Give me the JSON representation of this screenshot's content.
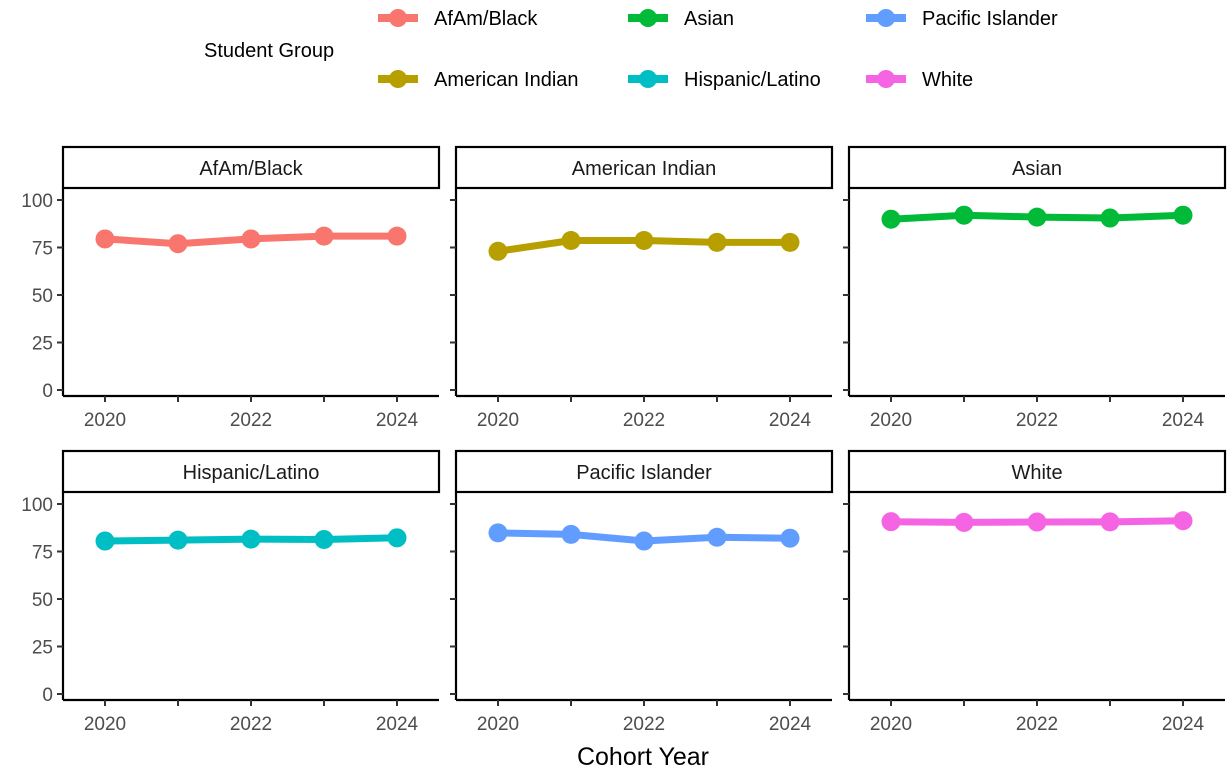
{
  "chart_data": {
    "type": "line",
    "xlabel": "Cohort Year",
    "ylabel": "",
    "ylim": [
      0,
      100
    ],
    "yticks": [
      0,
      25,
      50,
      75,
      100
    ],
    "x": [
      2020,
      2021,
      2022,
      2023,
      2024
    ],
    "xtick_labels": [
      "2020",
      "2022",
      "2024"
    ],
    "facet_by": "Student Group",
    "legend": {
      "title": "Student Group",
      "placement": "top",
      "entries": [
        "AfAm/Black",
        "American Indian",
        "Asian",
        "Hispanic/Latino",
        "Pacific Islander",
        "White"
      ]
    },
    "grid": false,
    "series": [
      {
        "name": "AfAm/Black",
        "color": "#F8766D",
        "values": [
          79.5,
          77,
          79.5,
          81,
          81
        ]
      },
      {
        "name": "American Indian",
        "color": "#B79F00",
        "values": [
          73,
          78.7,
          78.7,
          77.7,
          77.7
        ]
      },
      {
        "name": "Asian",
        "color": "#00BA38",
        "values": [
          89.9,
          92,
          91,
          90.5,
          92
        ]
      },
      {
        "name": "Hispanic/Latino",
        "color": "#00BFC4",
        "values": [
          80.5,
          81,
          81.5,
          81.3,
          82.2
        ]
      },
      {
        "name": "Pacific Islander",
        "color": "#619CFF",
        "values": [
          84.8,
          84,
          80.5,
          82.5,
          82
        ]
      },
      {
        "name": "White",
        "color": "#F564E3",
        "values": [
          90.7,
          90.3,
          90.5,
          90.6,
          91.2
        ]
      }
    ]
  }
}
